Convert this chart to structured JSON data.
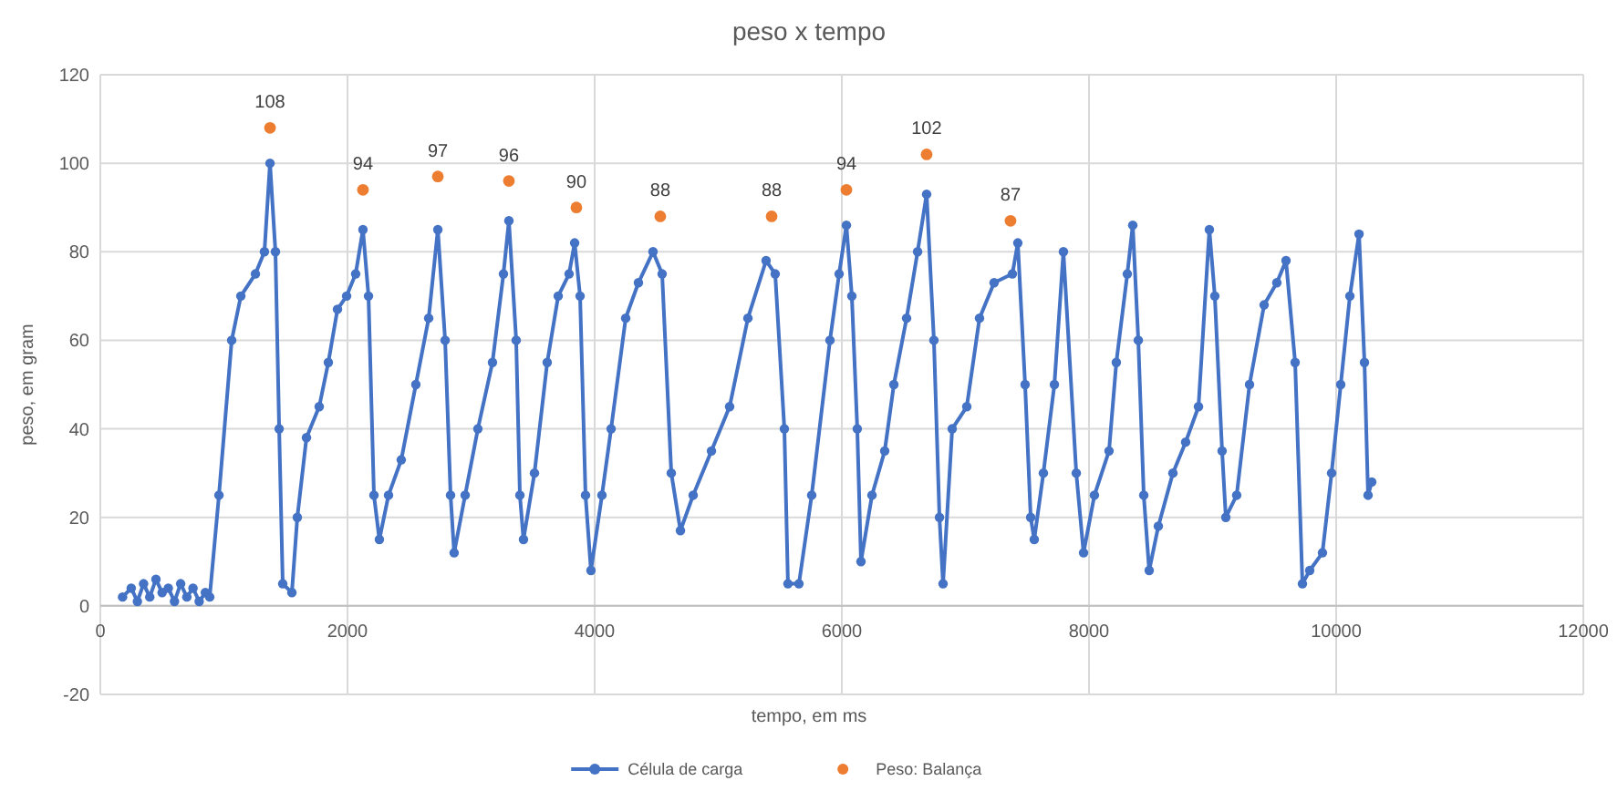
{
  "chart_data": {
    "type": "line",
    "title": "peso x tempo",
    "xlabel": "tempo, em ms",
    "ylabel": "peso, em gram",
    "xlim": [
      0,
      12000
    ],
    "xticks": [
      0,
      2000,
      4000,
      6000,
      8000,
      10000,
      12000
    ],
    "ylim": [
      -20,
      120
    ],
    "yticks": [
      -20,
      0,
      20,
      40,
      60,
      80,
      100,
      120
    ],
    "grid": true,
    "legend": "bottom",
    "marker": "circle",
    "line_style": "solid",
    "series": [
      {
        "name": "Célula de carga",
        "color": "#4472c4",
        "x": [
          180,
          250,
          300,
          350,
          400,
          450,
          500,
          550,
          600,
          650,
          700,
          750,
          800,
          850,
          885,
          960,
          1063,
          1137,
          1255,
          1328,
          1373,
          1417,
          1447,
          1476,
          1550,
          1594,
          1668,
          1771,
          1845,
          1919,
          1993,
          2066,
          2125,
          2170,
          2214,
          2258,
          2332,
          2435,
          2553,
          2657,
          2731,
          2790,
          2834,
          2863,
          2952,
          3055,
          3173,
          3262,
          3306,
          3365,
          3395,
          3424,
          3513,
          3616,
          3705,
          3793,
          3838,
          3882,
          3926,
          3970,
          4059,
          4133,
          4251,
          4354,
          4472,
          4546,
          4620,
          4694,
          4797,
          4945,
          5092,
          5240,
          5387,
          5461,
          5535,
          5564,
          5653,
          5756,
          5904,
          5978,
          6037,
          6081,
          6125,
          6155,
          6244,
          6347,
          6421,
          6524,
          6613,
          6686,
          6745,
          6790,
          6819,
          6893,
          7011,
          7114,
          7232,
          7380,
          7424,
          7483,
          7528,
          7557,
          7631,
          7720,
          7793,
          7897,
          7956,
          8044,
          8162,
          8221,
          8310,
          8354,
          8399,
          8443,
          8487,
          8561,
          8679,
          8782,
          8886,
          8974,
          9018,
          9077,
          9107,
          9195,
          9299,
          9417,
          9520,
          9594,
          9668,
          9727,
          9786,
          9889,
          9963,
          10037,
          10111,
          10185,
          10229,
          10258,
          10288
        ],
        "values": [
          2,
          4,
          1,
          5,
          2,
          6,
          3,
          4,
          1,
          5,
          2,
          4,
          1,
          3,
          2,
          25,
          60,
          70,
          75,
          80,
          100,
          80,
          40,
          5,
          3,
          20,
          38,
          45,
          55,
          67,
          70,
          75,
          85,
          70,
          25,
          15,
          25,
          33,
          50,
          65,
          85,
          60,
          25,
          12,
          25,
          40,
          55,
          75,
          87,
          60,
          25,
          15,
          30,
          55,
          70,
          75,
          82,
          70,
          25,
          8,
          25,
          40,
          65,
          73,
          80,
          75,
          30,
          17,
          25,
          35,
          45,
          65,
          78,
          75,
          40,
          5,
          5,
          25,
          60,
          75,
          86,
          70,
          40,
          10,
          25,
          35,
          50,
          65,
          80,
          93,
          60,
          20,
          5,
          40,
          45,
          65,
          73,
          75,
          82,
          50,
          20,
          15,
          30,
          50,
          80,
          30,
          12,
          25,
          35,
          55,
          75,
          86,
          60,
          25,
          8,
          18,
          30,
          37,
          45,
          85,
          70,
          35,
          20,
          25,
          50,
          68,
          73,
          78,
          55,
          5,
          8,
          12,
          30,
          50,
          70,
          84,
          55,
          25,
          28
        ]
      },
      {
        "name": "Peso: Balança",
        "type": "scatter",
        "color": "#ed7d31",
        "x": [
          1373,
          2125,
          2731,
          3306,
          3852,
          4531,
          5432,
          6037,
          6686,
          7365
        ],
        "values": [
          108,
          94,
          97,
          96,
          90,
          88,
          88,
          94,
          102,
          87
        ],
        "value_labels": [
          "108",
          "94",
          "97",
          "96",
          "90",
          "88",
          "88",
          "94",
          "102",
          "87"
        ]
      }
    ]
  }
}
